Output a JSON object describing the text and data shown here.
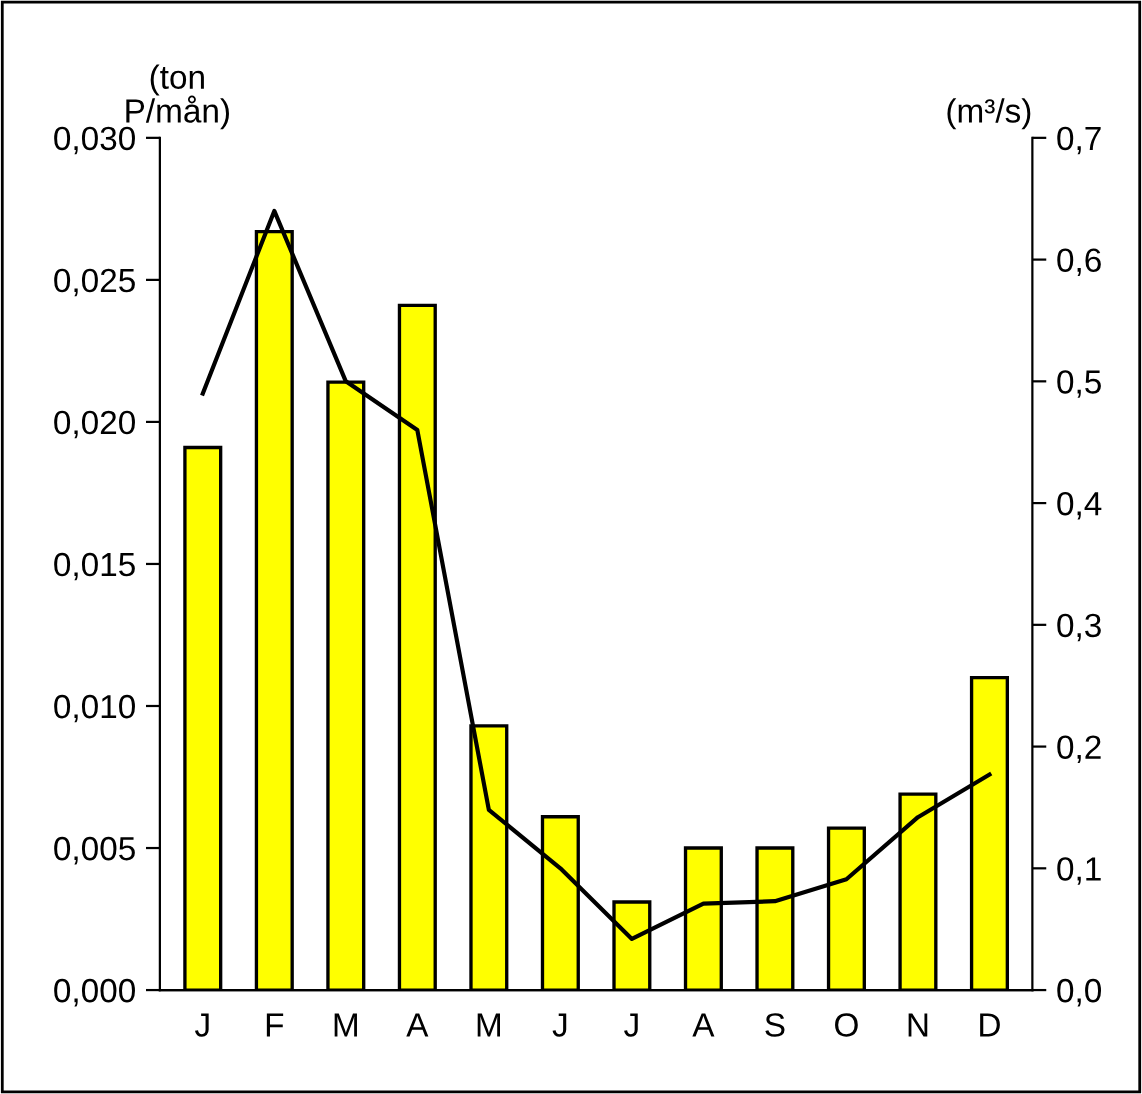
{
  "chart_data": {
    "type": "bar",
    "ylabel": "(ton\nP/mån)",
    "y2label": "(m³/s)",
    "categories": [
      "J",
      "F",
      "M",
      "A",
      "M",
      "J",
      "J",
      "A",
      "S",
      "O",
      "N",
      "D"
    ],
    "series": [
      {
        "color": "#ffff00",
        "values": [
          0.0191,
          0.0267,
          0.0214,
          0.0241,
          0.0093,
          0.0061,
          0.0031,
          0.005,
          0.005,
          0.0057,
          0.0069,
          0.011
        ]
      },
      {
        "type": "line",
        "axis": "y2",
        "color": "#000000",
        "values": [
          0.49,
          0.64,
          0.5,
          0.46,
          0.148,
          0.1,
          0.042,
          0.071,
          0.073,
          0.091,
          0.142,
          0.177
        ]
      }
    ],
    "ylim": [
      0,
      0.03
    ],
    "yticks": [
      {
        "value": 0,
        "label": "0,000"
      },
      {
        "value": 0.005,
        "label": "0,005"
      },
      {
        "value": 0.01,
        "label": "0,010"
      },
      {
        "value": 0.015,
        "label": "0,015"
      },
      {
        "value": 0.02,
        "label": "0,020"
      },
      {
        "value": 0.025,
        "label": "0,025"
      },
      {
        "value": 0.03,
        "label": "0,030"
      }
    ],
    "y2lim": [
      0,
      0.7
    ],
    "y2ticks": [
      {
        "value": 0,
        "label": "0,0"
      },
      {
        "value": 0.1,
        "label": "0,1"
      },
      {
        "value": 0.2,
        "label": "0,2"
      },
      {
        "value": 0.3,
        "label": "0,3"
      },
      {
        "value": 0.4,
        "label": "0,4"
      },
      {
        "value": 0.5,
        "label": "0,5"
      },
      {
        "value": 0.6,
        "label": "0,6"
      },
      {
        "value": 0.7,
        "label": "0,7"
      }
    ],
    "grid": false,
    "legend": false,
    "marker": "none",
    "line_style": "solid"
  }
}
